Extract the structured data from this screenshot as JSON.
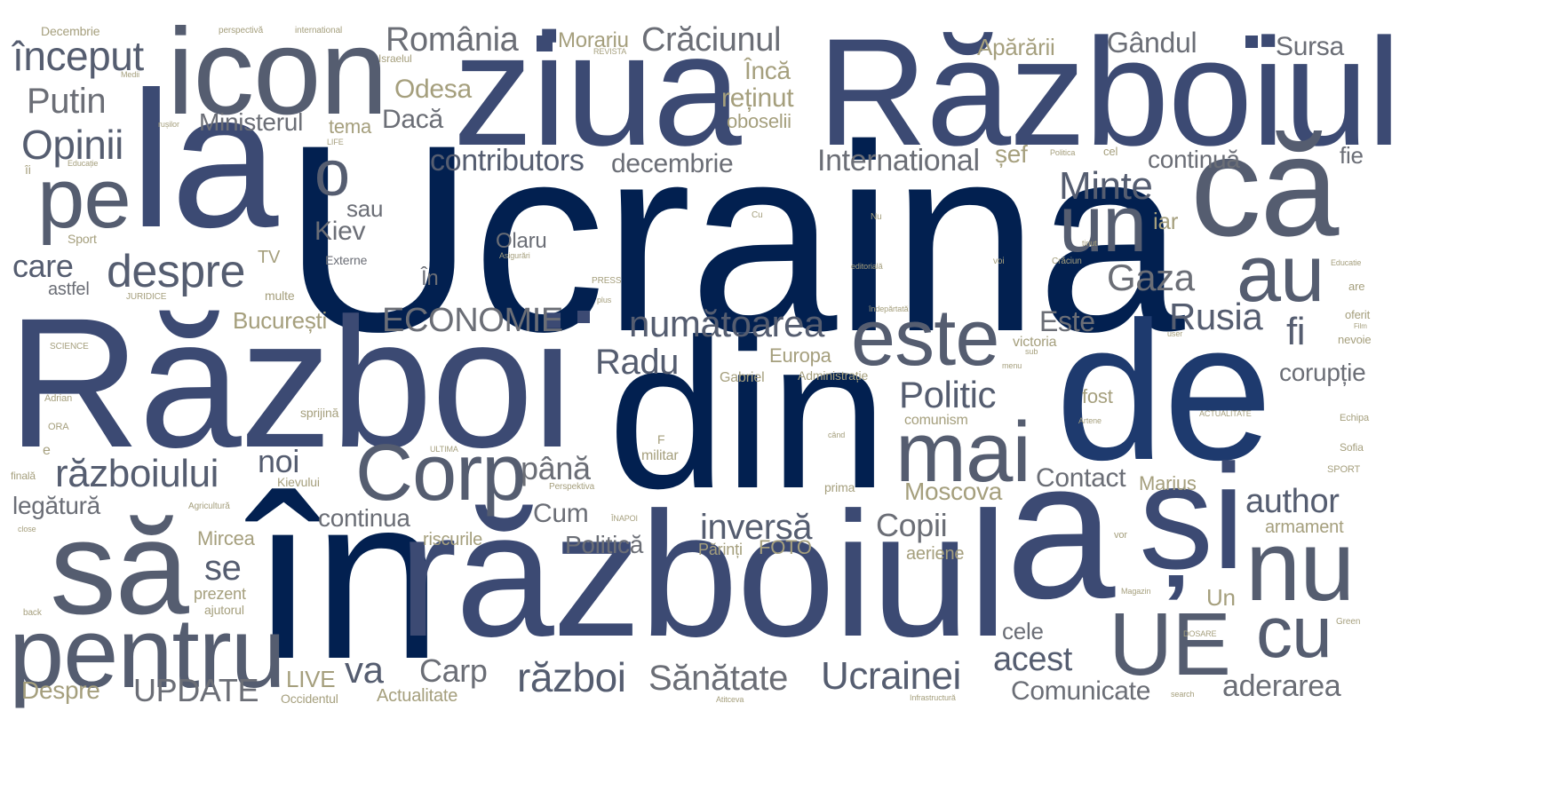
{
  "colors": {
    "background": "#ffffff",
    "navy": "#022050",
    "slate_blue": "#3c4a73",
    "steel": "#555d70",
    "gray": "#6b6e76",
    "gold": "#a59f7d"
  },
  "words": [
    {
      "text": "Ucraina",
      "color": "#022050"
    },
    {
      "text": "Război",
      "color": "#3c4a73"
    },
    {
      "text": "în",
      "color": "#022050"
    },
    {
      "text": "din",
      "color": "#022050"
    },
    {
      "text": "de",
      "color": "#1e3a6e"
    },
    {
      "text": "Războiul",
      "color": "#3c4a73"
    },
    {
      "text": "războiul",
      "color": "#3c4a73"
    },
    {
      "text": "la",
      "color": "#3c4a73"
    },
    {
      "text": "ziua",
      "color": "#3c4a73"
    },
    {
      "text": "icon",
      "color": "#555d70"
    },
    {
      "text": "a",
      "color": "#3c4a73"
    },
    {
      "text": "și",
      "color": "#3c4a73"
    },
    {
      "text": "să",
      "color": "#555d70"
    },
    {
      "text": "că",
      "color": "#555d70"
    },
    {
      "text": "pentru",
      "color": "#555d70"
    },
    {
      "text": "nu",
      "color": "#555d70"
    },
    {
      "text": "UE",
      "color": "#555d70"
    },
    {
      "text": "mai",
      "color": "#555d70"
    },
    {
      "text": "este",
      "color": "#555d70"
    },
    {
      "text": "pe",
      "color": "#555d70"
    },
    {
      "text": "Corp",
      "color": "#555d70"
    },
    {
      "text": "au",
      "color": "#555d70"
    },
    {
      "text": "un",
      "color": "#555d70"
    },
    {
      "text": "cu",
      "color": "#555d70"
    },
    {
      "text": "o",
      "color": "#555d70"
    },
    {
      "text": "despre",
      "color": "#555d70"
    },
    {
      "text": "început",
      "color": "#555d70"
    },
    {
      "text": "războiului",
      "color": "#555d70"
    },
    {
      "text": "ECONOMIE",
      "color": "#6b6e76"
    },
    {
      "text": "numătoarea",
      "color": "#555d70"
    },
    {
      "text": "Opinii",
      "color": "#555d70"
    },
    {
      "text": "Putin",
      "color": "#6b6e76"
    },
    {
      "text": "Minte",
      "color": "#555d70"
    },
    {
      "text": "Gaza",
      "color": "#6b6e76"
    },
    {
      "text": "Rusia",
      "color": "#555d70"
    },
    {
      "text": "Politic",
      "color": "#555d70"
    },
    {
      "text": "Radu",
      "color": "#555d70"
    },
    {
      "text": "contributors",
      "color": "#555d70"
    },
    {
      "text": "decembrie",
      "color": "#6b6e76"
    },
    {
      "text": "International",
      "color": "#6b6e76"
    },
    {
      "text": "România",
      "color": "#6b6e76"
    },
    {
      "text": "Crăciunul",
      "color": "#6b6e76"
    },
    {
      "text": "Gândul",
      "color": "#6b6e76"
    },
    {
      "text": "Sursa",
      "color": "#6b6e76"
    },
    {
      "text": "Apărării",
      "color": "#a59f7d"
    },
    {
      "text": "Morariu",
      "color": "#a59f7d"
    },
    {
      "text": "Odesa",
      "color": "#a59f7d"
    },
    {
      "text": "Dacă",
      "color": "#6b6e76"
    },
    {
      "text": "reținut",
      "color": "#a59f7d"
    },
    {
      "text": "Încă",
      "color": "#a59f7d"
    },
    {
      "text": "oboselii",
      "color": "#a59f7d"
    },
    {
      "text": "Ministerul",
      "color": "#6b6e76"
    },
    {
      "text": "tema",
      "color": "#a59f7d"
    },
    {
      "text": "șef",
      "color": "#a59f7d"
    },
    {
      "text": "continuă",
      "color": "#6b6e76"
    },
    {
      "text": "fie",
      "color": "#6b6e76"
    },
    {
      "text": "iar",
      "color": "#a59f7d"
    },
    {
      "text": "sau",
      "color": "#6b6e76"
    },
    {
      "text": "Kiev",
      "color": "#6b6e76"
    },
    {
      "text": "Olaru",
      "color": "#6b6e76"
    },
    {
      "text": "care",
      "color": "#555d70"
    },
    {
      "text": "astfel",
      "color": "#6b6e76"
    },
    {
      "text": "TV",
      "color": "#a59f7d"
    },
    {
      "text": "Externe",
      "color": "#6b6e76"
    },
    {
      "text": "În",
      "color": "#6b6e76"
    },
    {
      "text": "multe",
      "color": "#a59f7d"
    },
    {
      "text": "București",
      "color": "#a59f7d"
    },
    {
      "text": "Este",
      "color": "#6b6e76"
    },
    {
      "text": "fi",
      "color": "#555d70"
    },
    {
      "text": "corupție",
      "color": "#6b6e76"
    },
    {
      "text": "victoria",
      "color": "#a59f7d"
    },
    {
      "text": "Europa",
      "color": "#a59f7d"
    },
    {
      "text": "Administrație",
      "color": "#a59f7d"
    },
    {
      "text": "Gabriel",
      "color": "#a59f7d"
    },
    {
      "text": "fost",
      "color": "#a59f7d"
    },
    {
      "text": "comunism",
      "color": "#a59f7d"
    },
    {
      "text": "sprijină",
      "color": "#a59f7d"
    },
    {
      "text": "noi",
      "color": "#555d70"
    },
    {
      "text": "până",
      "color": "#6b6e76"
    },
    {
      "text": "militar",
      "color": "#a59f7d"
    },
    {
      "text": "Contact",
      "color": "#6b6e76"
    },
    {
      "text": "Marius",
      "color": "#a59f7d"
    },
    {
      "text": "Moscova",
      "color": "#a59f7d"
    },
    {
      "text": "author",
      "color": "#555d70"
    },
    {
      "text": "armament",
      "color": "#a59f7d"
    },
    {
      "text": "legătură",
      "color": "#6b6e76"
    },
    {
      "text": "Kievului",
      "color": "#a59f7d"
    },
    {
      "text": "continua",
      "color": "#6b6e76"
    },
    {
      "text": "Cum",
      "color": "#6b6e76"
    },
    {
      "text": "inversă",
      "color": "#555d70"
    },
    {
      "text": "Copii",
      "color": "#6b6e76"
    },
    {
      "text": "Mircea",
      "color": "#a59f7d"
    },
    {
      "text": "riscurile",
      "color": "#a59f7d"
    },
    {
      "text": "Politică",
      "color": "#6b6e76"
    },
    {
      "text": "Părinți",
      "color": "#a59f7d"
    },
    {
      "text": "FOTO",
      "color": "#a59f7d"
    },
    {
      "text": "aeriene",
      "color": "#a59f7d"
    },
    {
      "text": "se",
      "color": "#555d70"
    },
    {
      "text": "prezent",
      "color": "#a59f7d"
    },
    {
      "text": "ajutorul",
      "color": "#a59f7d"
    },
    {
      "text": "Un",
      "color": "#a59f7d"
    },
    {
      "text": "cele",
      "color": "#6b6e76"
    },
    {
      "text": "va",
      "color": "#555d70"
    },
    {
      "text": "Carp",
      "color": "#6b6e76"
    },
    {
      "text": "război",
      "color": "#555d70"
    },
    {
      "text": "Sănătate",
      "color": "#6b6e76"
    },
    {
      "text": "Ucrainei",
      "color": "#555d70"
    },
    {
      "text": "acest",
      "color": "#555d70"
    },
    {
      "text": "aderarea",
      "color": "#6b6e76"
    },
    {
      "text": "Comunicate",
      "color": "#6b6e76"
    },
    {
      "text": "Despre",
      "color": "#a59f7d"
    },
    {
      "text": "UPDATE",
      "color": "#6b6e76"
    },
    {
      "text": "LIVE",
      "color": "#a59f7d"
    },
    {
      "text": "Occidentul",
      "color": "#a59f7d"
    },
    {
      "text": "Actualitate",
      "color": "#a59f7d"
    },
    {
      "text": "Decembrie",
      "color": "#a59f7d"
    },
    {
      "text": "perspectivă",
      "color": "#a59f7d"
    },
    {
      "text": "international",
      "color": "#a59f7d"
    },
    {
      "text": "Israelul",
      "color": "#a59f7d"
    },
    {
      "text": "REVISTA",
      "color": "#a59f7d"
    },
    {
      "text": "rușilor",
      "color": "#a59f7d"
    },
    {
      "text": "LIFE",
      "color": "#a59f7d"
    },
    {
      "text": "Educație",
      "color": "#a59f7d"
    },
    {
      "text": "îi",
      "color": "#a59f7d"
    },
    {
      "text": "Sport",
      "color": "#a59f7d"
    },
    {
      "text": "JURIDICE",
      "color": "#a59f7d"
    },
    {
      "text": "SCIENCE",
      "color": "#a59f7d"
    },
    {
      "text": "Adrian",
      "color": "#a59f7d"
    },
    {
      "text": "ORA",
      "color": "#a59f7d"
    },
    {
      "text": "e",
      "color": "#a59f7d"
    },
    {
      "text": "finală",
      "color": "#a59f7d"
    },
    {
      "text": "Agricultură",
      "color": "#a59f7d"
    },
    {
      "text": "close",
      "color": "#a59f7d"
    },
    {
      "text": "back",
      "color": "#a59f7d"
    },
    {
      "text": "ULTIMA",
      "color": "#a59f7d"
    },
    {
      "text": "PRESS",
      "color": "#a59f7d"
    },
    {
      "text": "plus",
      "color": "#a59f7d"
    },
    {
      "text": "Asigurări",
      "color": "#a59f7d"
    },
    {
      "text": "Perspektiva",
      "color": "#a59f7d"
    },
    {
      "text": "ÎNAPOI",
      "color": "#a59f7d"
    },
    {
      "text": "prima",
      "color": "#a59f7d"
    },
    {
      "text": "când",
      "color": "#a59f7d"
    },
    {
      "text": "F",
      "color": "#a59f7d"
    },
    {
      "text": "Nu",
      "color": "#a59f7d"
    },
    {
      "text": "Cu",
      "color": "#a59f7d"
    },
    {
      "text": "voi",
      "color": "#a59f7d"
    },
    {
      "text": "Crăciun",
      "color": "#a59f7d"
    },
    {
      "text": "editorială",
      "color": "#a59f7d"
    },
    {
      "text": "îndepărtată",
      "color": "#a59f7d"
    },
    {
      "text": "cel",
      "color": "#a59f7d"
    },
    {
      "text": "Politica",
      "color": "#a59f7d"
    },
    {
      "text": "Educatie",
      "color": "#a59f7d"
    },
    {
      "text": "are",
      "color": "#a59f7d"
    },
    {
      "text": "oferit",
      "color": "#a59f7d"
    },
    {
      "text": "nevoie",
      "color": "#a59f7d"
    },
    {
      "text": "Echipa",
      "color": "#a59f7d"
    },
    {
      "text": "Sofia",
      "color": "#a59f7d"
    },
    {
      "text": "SPORT",
      "color": "#a59f7d"
    },
    {
      "text": "ACTUALITATE",
      "color": "#a59f7d"
    },
    {
      "text": "Artene",
      "color": "#a59f7d"
    },
    {
      "text": "vor",
      "color": "#a59f7d"
    },
    {
      "text": "Magazin",
      "color": "#a59f7d"
    },
    {
      "text": "DOSARE",
      "color": "#a59f7d"
    },
    {
      "text": "Green",
      "color": "#a59f7d"
    },
    {
      "text": "Infrastructură",
      "color": "#a59f7d"
    },
    {
      "text": "search",
      "color": "#a59f7d"
    },
    {
      "text": "Atitceva",
      "color": "#a59f7d"
    },
    {
      "text": "menu",
      "color": "#a59f7d"
    },
    {
      "text": "user",
      "color": "#a59f7d"
    },
    {
      "text": "Film",
      "color": "#a59f7d"
    },
    {
      "text": "tinut",
      "color": "#a59f7d"
    },
    {
      "text": "Medii",
      "color": "#a59f7d"
    },
    {
      "text": "sub",
      "color": "#a59f7d"
    }
  ]
}
